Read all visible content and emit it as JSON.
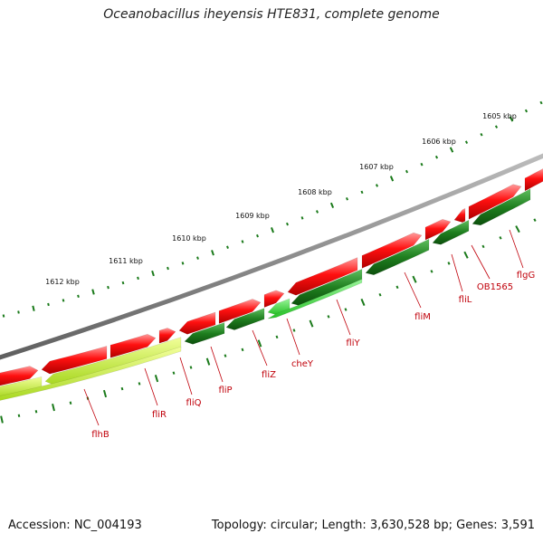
{
  "title": "Oceanobacillus iheyensis HTE831, complete genome",
  "footer": {
    "accession": "Accession: NC_004193",
    "stats": "Topology: circular; Length: 3,630,528 bp; Genes: 3,591"
  },
  "colors": {
    "backbone": "#7a7a7a",
    "forward_gene": "#ff1010",
    "reverse_gene": "#2a8a2a",
    "reverse_gene_light": "#38d838",
    "reverse_gene_lime": "#c8f040",
    "ticks": "#1a7a1a",
    "labels": "#c0000a"
  },
  "kbp_labels": [
    "1605 kbp",
    "1606 kbp",
    "1607 kbp",
    "1608 kbp",
    "1609 kbp",
    "1610 kbp",
    "1611 kbp",
    "1612 kbp"
  ],
  "gene_labels": [
    "flgG",
    "OB1565",
    "fliL",
    "fliM",
    "fliY",
    "cheY",
    "fliZ",
    "fliP",
    "fliQ",
    "fliR",
    "flhB"
  ]
}
